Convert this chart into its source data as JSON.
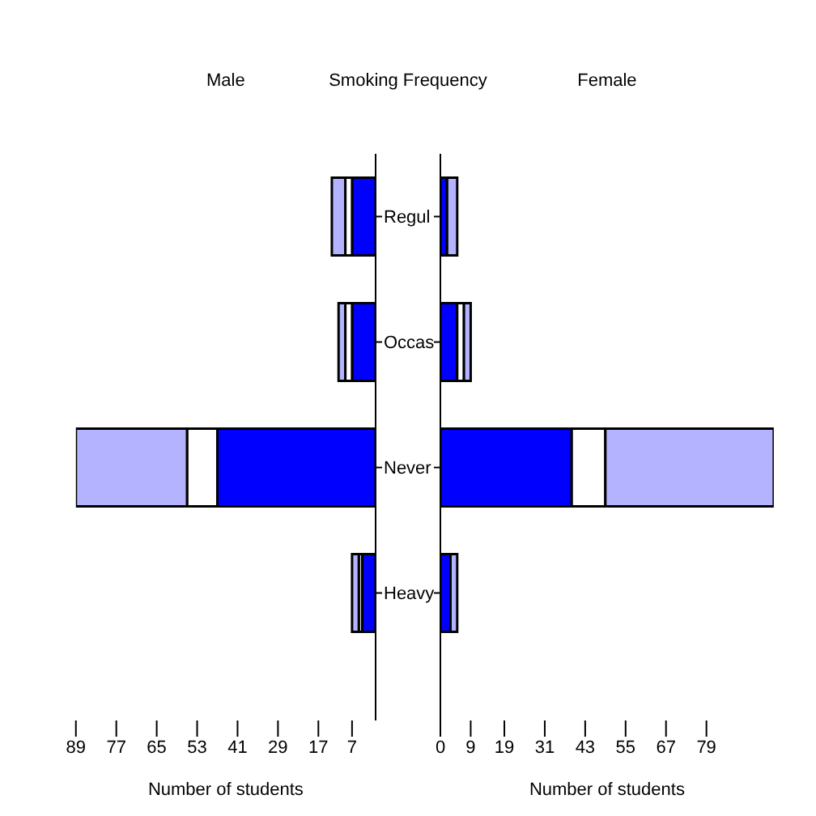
{
  "chart_data": [
    {
      "type": "bar",
      "title": "Male",
      "ylabel": "Smoking Frequency",
      "xlabel": "Number of students",
      "orientation": "horizontal",
      "stacked": true,
      "categories": [
        "Regul",
        "Occas",
        "Never",
        "Heavy"
      ],
      "xlim": [
        89,
        0
      ],
      "xticks": [
        89,
        77,
        65,
        53,
        41,
        29,
        17,
        7
      ],
      "grid": false,
      "series": [
        {
          "color": "#0000ff",
          "values": [
            7,
            7,
            47,
            4
          ]
        },
        {
          "color": "#ffffff",
          "values": [
            2,
            2,
            9,
            1
          ]
        },
        {
          "color": "#b3b3ff",
          "values": [
            4,
            2,
            33,
            2
          ]
        }
      ]
    },
    {
      "type": "bar",
      "title": "Female",
      "xlabel": "Number of students",
      "orientation": "horizontal",
      "stacked": true,
      "xlim": [
        0,
        99
      ],
      "xticks": [
        0,
        9,
        19,
        31,
        43,
        55,
        67,
        79
      ],
      "grid": false,
      "tick_labels": "x",
      "series": [
        {
          "color": "#0000ff",
          "values": [
            2,
            5,
            39,
            3
          ]
        },
        {
          "color": "#ffffff",
          "values": [
            0,
            2,
            10,
            0
          ]
        },
        {
          "color": "#b3b3ff",
          "values": [
            3,
            2,
            50,
            2
          ]
        }
      ]
    }
  ]
}
